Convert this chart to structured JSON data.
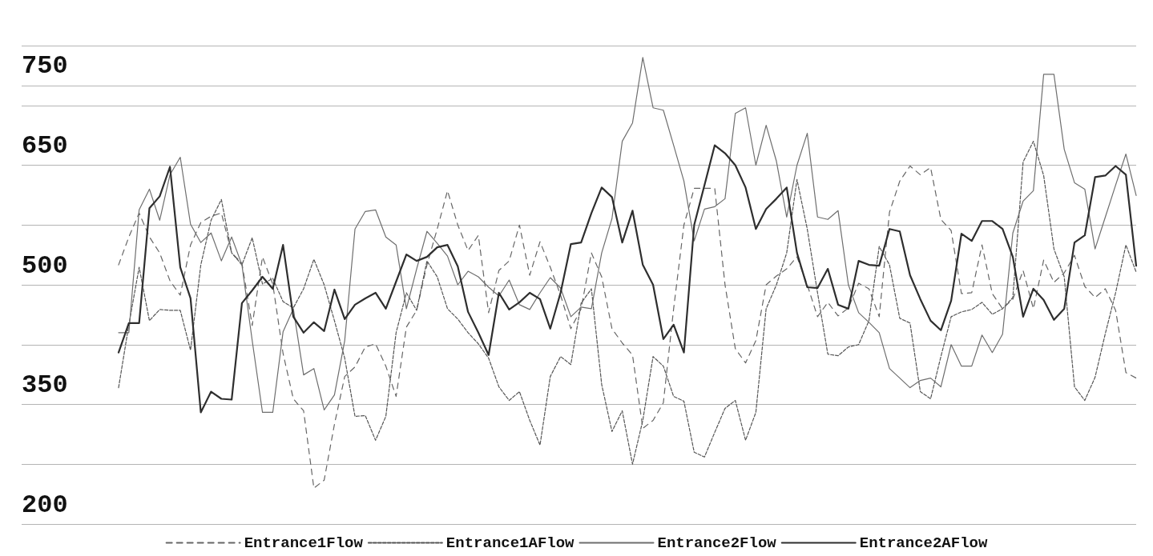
{
  "chart_data": {
    "type": "line",
    "categories": [
      null,
      null,
      null,
      null,
      null,
      null,
      null,
      null,
      null,
      null,
      null,
      null,
      null,
      null,
      null,
      null,
      null,
      null,
      null,
      null,
      null,
      null,
      null,
      null,
      null,
      null,
      null,
      null,
      null,
      null,
      null,
      null,
      null,
      null,
      null,
      null,
      null,
      null,
      null,
      null,
      null,
      null,
      null,
      null,
      null,
      null,
      null,
      null,
      null,
      null,
      null,
      null,
      null,
      null,
      null,
      null,
      null,
      null,
      null,
      null,
      null,
      null,
      null,
      null,
      null,
      null,
      null,
      null,
      null,
      null,
      null,
      null,
      null,
      null,
      null,
      null,
      null,
      null,
      null,
      null,
      null,
      null,
      null,
      null,
      null,
      null,
      null,
      null,
      null,
      null,
      null,
      null,
      null,
      null,
      null,
      null,
      null,
      null,
      null,
      null
    ],
    "series": [
      {
        "name": "Entrance1Flow",
        "color": "#666666",
        "line_style": "dashed",
        "values": [
          525,
          560,
          590,
          560,
          540,
          505,
          487,
          550,
          578,
          586,
          590,
          540,
          527,
          449,
          535,
          501,
          414,
          357,
          342,
          245,
          255,
          325,
          385,
          397,
          422,
          426,
          398,
          360,
          447,
          468,
          525,
          570,
          618,
          575,
          543,
          562,
          465,
          518,
          530,
          575,
          512,
          554,
          522,
          487,
          445,
          470,
          540,
          510,
          445,
          427,
          412,
          320,
          330,
          352,
          470,
          575,
          621,
          621,
          621,
          500,
          420,
          402,
          430,
          500,
          511,
          520,
          535,
          500,
          460,
          478,
          461,
          471,
          502,
          495,
          460,
          591,
          630,
          649,
          638,
          647,
          582,
          568,
          489,
          490,
          550,
          489,
          470,
          482,
          518,
          470,
          531,
          503,
          515,
          537,
          498,
          484,
          495,
          468,
          390,
          383
        ]
      },
      {
        "name": "Entrance1AFlow",
        "color": "#555555",
        "line_style": "dashed",
        "values": [
          371,
          450,
          522,
          455,
          469,
          468,
          468,
          418,
          525,
          581,
          607,
          540,
          525,
          559,
          501,
          508,
          479,
          471,
          495,
          532,
          500,
          455,
          408,
          335,
          336,
          305,
          335,
          440,
          490,
          468,
          530,
          510,
          470,
          457,
          440,
          426,
          408,
          372,
          355,
          366,
          330,
          299,
          385,
          410,
          400,
          477,
          495,
          375,
          316,
          342,
          275,
          330,
          410,
          398,
          360,
          354,
          290,
          284,
          315,
          345,
          355,
          305,
          340,
          470,
          500,
          540,
          632,
          570,
          490,
          413,
          411,
          422,
          425,
          455,
          548,
          525,
          458,
          452,
          366,
          357,
          410,
          460,
          466,
          469,
          478,
          463,
          470,
          484,
          654,
          680,
          637,
          545,
          510,
          372,
          355,
          384,
          439,
          490,
          550,
          516
        ]
      },
      {
        "name": "Entrance2Flow",
        "color": "#6e6e6e",
        "line_style": "solid",
        "values": [
          440,
          440,
          594,
          620,
          581,
          638,
          660,
          576,
          553,
          565,
          530,
          560,
          525,
          430,
          340,
          340,
          441,
          470,
          387,
          395,
          343,
          362,
          430,
          570,
          592,
          594,
          560,
          550,
          470,
          520,
          567,
          552,
          536,
          500,
          517,
          510,
          497,
          486,
          506,
          475,
          469,
          490,
          509,
          496,
          460,
          472,
          470,
          540,
          583,
          680,
          703,
          785,
          722,
          719,
          675,
          630,
          555,
          595,
          598,
          608,
          715,
          722,
          650,
          700,
          655,
          585,
          650,
          690,
          585,
          582,
          593,
          500,
          465,
          453,
          440,
          395,
          383,
          371,
          380,
          383,
          372,
          425,
          398,
          398,
          437,
          415,
          438,
          565,
          605,
          618,
          764,
          764,
          670,
          628,
          620,
          545,
          585,
          625,
          664,
          612
        ]
      },
      {
        "name": "Entrance2AFlow",
        "color": "#2e2e2e",
        "line_style": "solid",
        "values": [
          415,
          452,
          452,
          596,
          611,
          648,
          522,
          483,
          340,
          366,
          357,
          356,
          477,
          493,
          510,
          495,
          550,
          460,
          440,
          453,
          442,
          494,
          457,
          475,
          483,
          490,
          470,
          504,
          538,
          530,
          535,
          547,
          550,
          523,
          466,
          440,
          412,
          490,
          469,
          478,
          490,
          482,
          445,
          490,
          551,
          553,
          590,
          622,
          610,
          553,
          593,
          525,
          500,
          432,
          450,
          415,
          575,
          625,
          675,
          665,
          650,
          622,
          570,
          595,
          608,
          622,
          540,
          497,
          496,
          520,
          475,
          470,
          530,
          525,
          524,
          570,
          567,
          512,
          482,
          455,
          443,
          480,
          564,
          555,
          580,
          580,
          570,
          535,
          460,
          495,
          481,
          456,
          470,
          553,
          562,
          635,
          637,
          649,
          638,
          524
        ]
      }
    ],
    "ylim": [
      200,
      800
    ],
    "yticks": [
      200,
      {
        "value": 275,
        "label": null
      },
      350,
      {
        "value": 425,
        "label": null
      },
      500,
      {
        "value": 575,
        "label": null
      },
      650,
      {
        "value": 725,
        "label": null
      },
      750,
      {
        "value": 800,
        "label": null
      }
    ],
    "tick_labels": "y",
    "grid": "y",
    "legend": "bottom",
    "marker": "none"
  }
}
